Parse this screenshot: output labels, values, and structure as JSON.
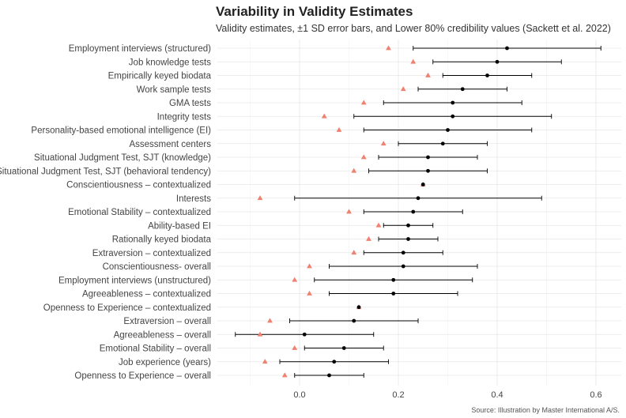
{
  "chart_data": {
    "type": "scatter",
    "title": "Variability in Validity Estimates",
    "subtitle": "Validity estimates, ±1 SD error bars, and Lower 80% credibility values (Sackett et al. 2022)",
    "caption": "Source: Illustration by Master International A/S.",
    "xlabel": "",
    "ylabel": "",
    "xlim": [
      -0.15,
      0.65
    ],
    "xticks": [
      0.0,
      0.2,
      0.4,
      0.6
    ],
    "xtick_labels": [
      "0.0",
      "0.2",
      "0.4",
      "0.6"
    ],
    "grid": true,
    "legend": "none",
    "series": [
      {
        "name": "Validity estimate (±1 SD)",
        "marker": "circle",
        "color": "#000000"
      },
      {
        "name": "Lower 80% credibility value",
        "marker": "triangle",
        "color": "#f08070"
      }
    ],
    "categories": [
      "Employment interviews (structured)",
      "Job knowledge tests",
      "Empirically keyed biodata",
      "Work sample tests",
      "GMA tests",
      "Integrity tests",
      "Personality-based emotional intelligence (EI)",
      "Assessment centers",
      "Situational Judgment Test, SJT (knowledge)",
      "Situational Judgment Test, SJT (behavioral tendency)",
      "Conscientiousness – contextualized",
      "Interests",
      "Emotional Stability – contextualized",
      "Ability-based EI",
      "Rationally keyed biodata",
      "Extraversion – contextualized",
      "Conscientiousness- overall",
      "Employment interviews (unstructured)",
      "Agreeableness – contextualized",
      "Openness to Experience – contextualized",
      "Extraversion – overall",
      "Agreeableness – overall",
      "Emotional Stability – overall",
      "Job experience (years)",
      "Openness to Experience – overall"
    ],
    "estimate": [
      0.42,
      0.4,
      0.38,
      0.33,
      0.31,
      0.31,
      0.3,
      0.29,
      0.26,
      0.26,
      0.25,
      0.24,
      0.23,
      0.22,
      0.22,
      0.21,
      0.21,
      0.19,
      0.19,
      0.12,
      0.11,
      0.01,
      0.09,
      0.07,
      0.06
    ],
    "lower_sd": [
      0.23,
      0.27,
      0.29,
      0.24,
      0.17,
      0.11,
      0.13,
      0.2,
      0.16,
      0.14,
      0.25,
      -0.01,
      0.13,
      0.17,
      0.16,
      0.13,
      0.06,
      0.03,
      0.06,
      0.12,
      -0.02,
      -0.13,
      0.01,
      -0.04,
      -0.01
    ],
    "upper_sd": [
      0.61,
      0.53,
      0.47,
      0.42,
      0.45,
      0.51,
      0.47,
      0.38,
      0.36,
      0.38,
      0.25,
      0.49,
      0.33,
      0.27,
      0.28,
      0.29,
      0.36,
      0.35,
      0.32,
      0.12,
      0.24,
      0.15,
      0.17,
      0.18,
      0.13
    ],
    "lower_80_credibility": [
      0.18,
      0.23,
      0.26,
      0.21,
      0.13,
      0.05,
      0.08,
      0.17,
      0.13,
      0.11,
      0.25,
      -0.08,
      0.1,
      0.16,
      0.14,
      0.11,
      0.02,
      -0.01,
      0.02,
      0.12,
      -0.06,
      -0.08,
      -0.01,
      -0.07,
      -0.03
    ]
  }
}
